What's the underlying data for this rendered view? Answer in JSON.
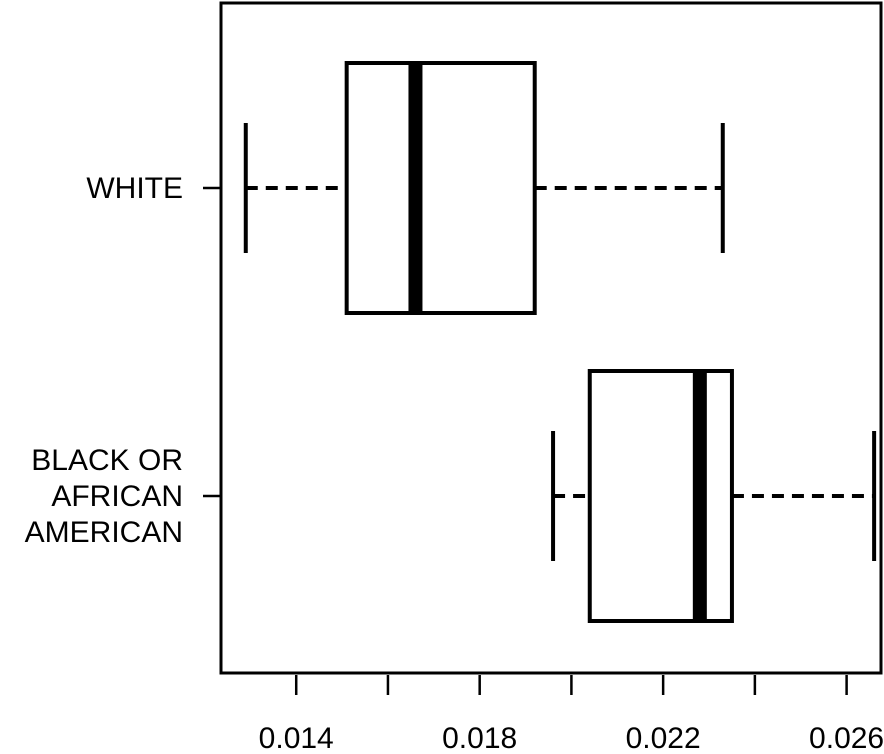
{
  "chart_data": {
    "type": "boxplot",
    "orientation": "horizontal",
    "title": "",
    "xlabel": "",
    "ylabel": "",
    "xlim": [
      0.01236,
      0.02675
    ],
    "x_ticks": [
      0.014,
      0.016,
      0.018,
      0.02,
      0.022,
      0.024,
      0.026
    ],
    "x_tick_labels": [
      "0.014",
      "",
      "0.018",
      "",
      "0.022",
      "",
      "0.026"
    ],
    "categories": [
      {
        "lines": [
          "WHITE"
        ]
      },
      {
        "lines": [
          "BLACK OR",
          "AFRICAN",
          "AMERICAN"
        ]
      }
    ],
    "boxes": [
      {
        "whisker_low": 0.0129,
        "q1": 0.0151,
        "median": 0.0166,
        "q3": 0.0192,
        "whisker_high": 0.0233
      },
      {
        "whisker_low": 0.0196,
        "q1": 0.0204,
        "median": 0.0228,
        "q3": 0.0235,
        "whisker_high": 0.0266
      }
    ],
    "grid": false,
    "legend": false
  }
}
